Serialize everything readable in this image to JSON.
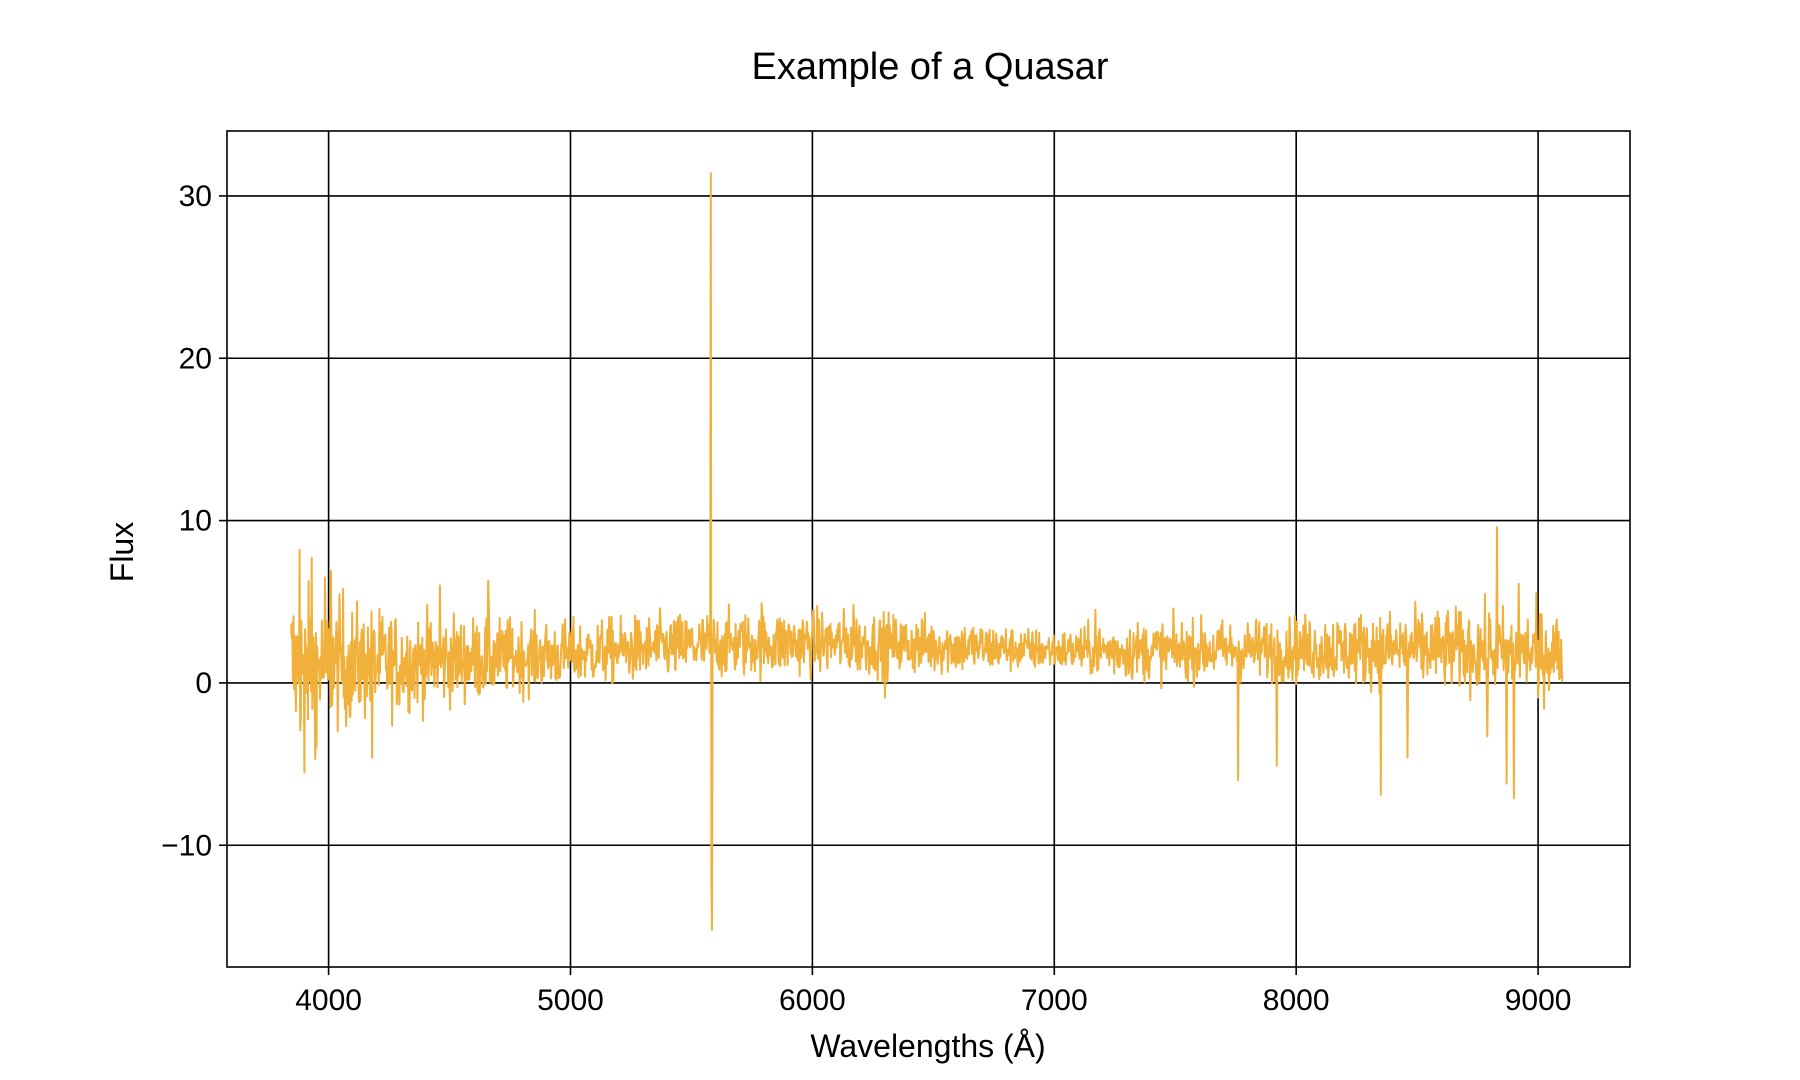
{
  "chart_data": {
    "type": "line",
    "title": "Example of a Quasar",
    "xlabel": "Wavelengths (Å)",
    "ylabel": "Flux",
    "xlim": [
      3580,
      9380
    ],
    "ylim": [
      -17.5,
      34
    ],
    "xticks": [
      4000,
      5000,
      6000,
      7000,
      8000,
      9000
    ],
    "xtick_labels": [
      "4000",
      "5000",
      "6000",
      "7000",
      "8000",
      "9000"
    ],
    "yticks": [
      -10,
      0,
      10,
      20,
      30
    ],
    "ytick_labels": [
      "−10",
      "0",
      "10",
      "20",
      "30"
    ],
    "grid": true,
    "legend": "none",
    "series": [
      {
        "color": "#f0b03a",
        "x_range": [
          3845,
          9100
        ],
        "sample_step": 2.5,
        "continuum": [
          [
            3845,
            1.0
          ],
          [
            4200,
            1.2
          ],
          [
            5000,
            1.8
          ],
          [
            5500,
            2.3
          ],
          [
            6000,
            2.5
          ],
          [
            6500,
            2.3
          ],
          [
            7000,
            2.0
          ],
          [
            7500,
            2.0
          ],
          [
            8000,
            2.1
          ],
          [
            8500,
            2.1
          ],
          [
            9000,
            1.9
          ],
          [
            9100,
            1.8
          ]
        ],
        "noise": [
          [
            3845,
            2.6
          ],
          [
            4000,
            2.0
          ],
          [
            4300,
            1.5
          ],
          [
            5000,
            1.0
          ],
          [
            5500,
            1.0
          ],
          [
            6000,
            1.0
          ],
          [
            6500,
            0.9
          ],
          [
            7000,
            0.6
          ],
          [
            7300,
            0.9
          ],
          [
            7700,
            0.9
          ],
          [
            8000,
            1.0
          ],
          [
            8500,
            1.2
          ],
          [
            9000,
            1.3
          ],
          [
            9100,
            1.3
          ]
        ],
        "spikes": [
          [
            3880,
            8.2
          ],
          [
            3900,
            -5.5
          ],
          [
            3930,
            7.7
          ],
          [
            3950,
            -4.0
          ],
          [
            3985,
            6.5
          ],
          [
            4010,
            6.9
          ],
          [
            4060,
            5.8
          ],
          [
            4180,
            -4.6
          ],
          [
            4460,
            6.0
          ],
          [
            4660,
            6.3
          ],
          [
            5580,
            31.4
          ],
          [
            5585,
            -15.2
          ],
          [
            5582,
            -12.0
          ],
          [
            5790,
            4.9
          ],
          [
            6170,
            4.8
          ],
          [
            6300,
            -0.9
          ],
          [
            7170,
            4.5
          ],
          [
            7760,
            -6.0
          ],
          [
            7920,
            -5.1
          ],
          [
            8350,
            -6.9
          ],
          [
            8460,
            -4.6
          ],
          [
            8830,
            9.6
          ],
          [
            8790,
            -3.3
          ],
          [
            8870,
            -6.2
          ],
          [
            8900,
            -7.1
          ],
          [
            8920,
            6.1
          ],
          [
            9000,
            -0.9
          ]
        ]
      }
    ]
  }
}
